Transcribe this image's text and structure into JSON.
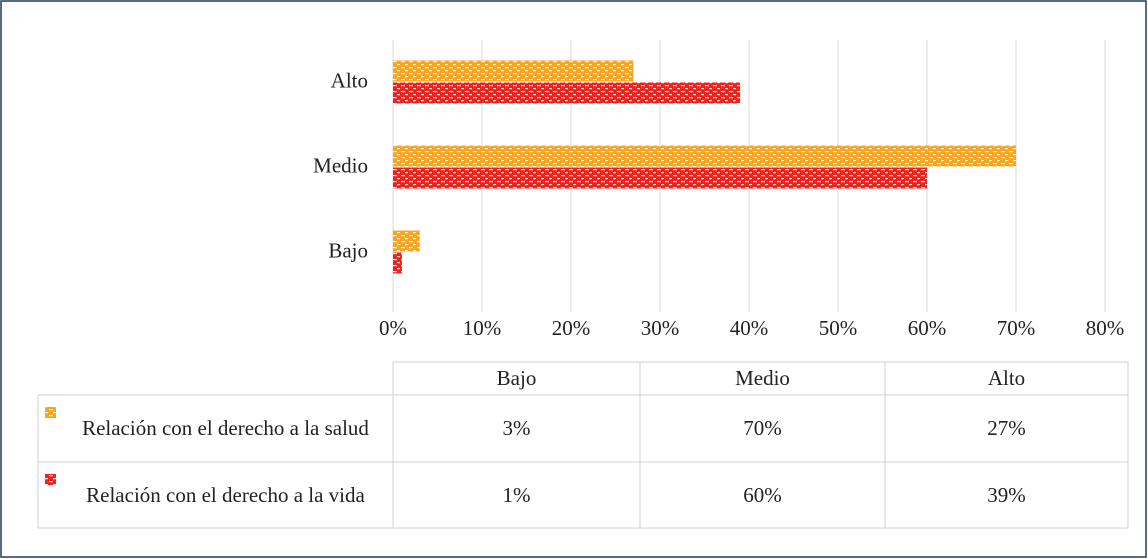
{
  "chart_data": {
    "type": "hbar",
    "categories": [
      "Bajo",
      "Medio",
      "Alto"
    ],
    "series": [
      {
        "name": "Relación con el derecho a la salud",
        "color": "#f5a623",
        "values": [
          3,
          70,
          27
        ],
        "value_labels": [
          "3%",
          "70%",
          "27%"
        ]
      },
      {
        "name": "Relación con el derecho a la vida",
        "color": "#e8251f",
        "values": [
          1,
          60,
          39
        ],
        "value_labels": [
          "1%",
          "60%",
          "39%"
        ]
      }
    ],
    "xlim": [
      0,
      80
    ],
    "xticks": [
      {
        "value": 0,
        "label": "0%"
      },
      {
        "value": 10,
        "label": "10%"
      },
      {
        "value": 20,
        "label": "20%"
      },
      {
        "value": 30,
        "label": "30%"
      },
      {
        "value": 40,
        "label": "40%"
      },
      {
        "value": 50,
        "label": "50%"
      },
      {
        "value": 60,
        "label": "60%"
      },
      {
        "value": 70,
        "label": "70%"
      },
      {
        "value": 80,
        "label": "80%"
      }
    ],
    "grid": true
  }
}
